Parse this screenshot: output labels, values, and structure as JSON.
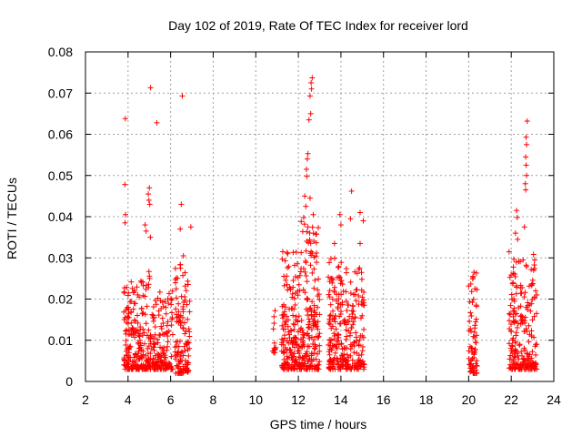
{
  "chart_data": {
    "type": "scatter",
    "title": "Day 102 of 2019, Rate Of TEC Index for receiver lord",
    "xlabel": "GPS time / hours",
    "ylabel": "ROTI / TECUs",
    "xlim": [
      2,
      24
    ],
    "ylim": [
      0,
      0.08
    ],
    "x_ticks": [
      2,
      4,
      6,
      8,
      10,
      12,
      14,
      16,
      18,
      20,
      22,
      24
    ],
    "x_tick_labels": [
      "2",
      "4",
      "6",
      "8",
      "10",
      "12",
      "14",
      "16",
      "18",
      "20",
      "22",
      "24"
    ],
    "y_ticks": [
      0,
      0.01,
      0.02,
      0.03,
      0.04,
      0.05,
      0.06,
      0.07,
      0.08
    ],
    "y_tick_labels": [
      "0",
      "0.01",
      "0.02",
      "0.03",
      "0.04",
      "0.05",
      "0.06",
      "0.07",
      "0.08"
    ],
    "grid": true,
    "marker": "+",
    "series_color": "#ff0000",
    "clusters": [
      {
        "x_start": 3.8,
        "x_end": 4.4,
        "y_min": 0.003,
        "y_max": 0.024,
        "count": 110
      },
      {
        "x_start": 4.4,
        "x_end": 5.2,
        "y_min": 0.003,
        "y_max": 0.026,
        "count": 130
      },
      {
        "x_start": 5.2,
        "x_end": 6.1,
        "y_min": 0.003,
        "y_max": 0.022,
        "count": 130
      },
      {
        "x_start": 6.2,
        "x_end": 6.9,
        "y_min": 0.002,
        "y_max": 0.028,
        "count": 120
      },
      {
        "x_start": 10.8,
        "x_end": 11.0,
        "y_min": 0.007,
        "y_max": 0.024,
        "count": 12
      },
      {
        "x_start": 11.2,
        "x_end": 12.0,
        "y_min": 0.003,
        "y_max": 0.032,
        "count": 150
      },
      {
        "x_start": 12.0,
        "x_end": 13.0,
        "y_min": 0.003,
        "y_max": 0.038,
        "count": 200
      },
      {
        "x_start": 13.4,
        "x_end": 14.2,
        "y_min": 0.003,
        "y_max": 0.03,
        "count": 150
      },
      {
        "x_start": 14.2,
        "x_end": 15.1,
        "y_min": 0.003,
        "y_max": 0.028,
        "count": 130
      },
      {
        "x_start": 20.0,
        "x_end": 20.4,
        "y_min": 0.002,
        "y_max": 0.026,
        "count": 70
      },
      {
        "x_start": 21.9,
        "x_end": 23.2,
        "y_min": 0.003,
        "y_max": 0.03,
        "count": 220
      }
    ],
    "highlight_points": [
      {
        "x": 3.87,
        "y": 0.0638
      },
      {
        "x": 3.85,
        "y": 0.0478
      },
      {
        "x": 3.88,
        "y": 0.0405
      },
      {
        "x": 3.86,
        "y": 0.0385
      },
      {
        "x": 5.06,
        "y": 0.0713
      },
      {
        "x": 5.35,
        "y": 0.0628
      },
      {
        "x": 6.55,
        "y": 0.0693
      },
      {
        "x": 5.0,
        "y": 0.047
      },
      {
        "x": 4.95,
        "y": 0.0455
      },
      {
        "x": 5.02,
        "y": 0.043
      },
      {
        "x": 4.98,
        "y": 0.044
      },
      {
        "x": 4.8,
        "y": 0.038
      },
      {
        "x": 4.85,
        "y": 0.0365
      },
      {
        "x": 5.05,
        "y": 0.035
      },
      {
        "x": 6.5,
        "y": 0.043
      },
      {
        "x": 6.45,
        "y": 0.037
      },
      {
        "x": 6.95,
        "y": 0.0375
      },
      {
        "x": 6.6,
        "y": 0.0305
      },
      {
        "x": 12.65,
        "y": 0.0737
      },
      {
        "x": 12.6,
        "y": 0.0725
      },
      {
        "x": 12.62,
        "y": 0.071
      },
      {
        "x": 12.55,
        "y": 0.0693
      },
      {
        "x": 12.58,
        "y": 0.065
      },
      {
        "x": 12.5,
        "y": 0.0635
      },
      {
        "x": 12.45,
        "y": 0.0553
      },
      {
        "x": 12.42,
        "y": 0.054
      },
      {
        "x": 12.38,
        "y": 0.0515
      },
      {
        "x": 12.4,
        "y": 0.0498
      },
      {
        "x": 12.3,
        "y": 0.045
      },
      {
        "x": 12.55,
        "y": 0.0445
      },
      {
        "x": 12.35,
        "y": 0.0425
      },
      {
        "x": 12.25,
        "y": 0.0398
      },
      {
        "x": 12.7,
        "y": 0.0405
      },
      {
        "x": 12.45,
        "y": 0.0375
      },
      {
        "x": 14.5,
        "y": 0.0462
      },
      {
        "x": 14.9,
        "y": 0.041
      },
      {
        "x": 13.95,
        "y": 0.0405
      },
      {
        "x": 14.0,
        "y": 0.038
      },
      {
        "x": 14.45,
        "y": 0.0395
      },
      {
        "x": 15.05,
        "y": 0.039
      },
      {
        "x": 14.9,
        "y": 0.0335
      },
      {
        "x": 11.5,
        "y": 0.031
      },
      {
        "x": 13.7,
        "y": 0.0335
      },
      {
        "x": 20.25,
        "y": 0.0265
      },
      {
        "x": 20.2,
        "y": 0.0255
      },
      {
        "x": 22.75,
        "y": 0.0632
      },
      {
        "x": 22.7,
        "y": 0.0593
      },
      {
        "x": 22.72,
        "y": 0.0575
      },
      {
        "x": 22.68,
        "y": 0.0545
      },
      {
        "x": 22.7,
        "y": 0.0525
      },
      {
        "x": 22.72,
        "y": 0.05
      },
      {
        "x": 22.66,
        "y": 0.048
      },
      {
        "x": 22.68,
        "y": 0.0465
      },
      {
        "x": 22.25,
        "y": 0.0415
      },
      {
        "x": 22.28,
        "y": 0.0398
      },
      {
        "x": 22.2,
        "y": 0.036
      },
      {
        "x": 22.62,
        "y": 0.0375
      },
      {
        "x": 22.3,
        "y": 0.0345
      },
      {
        "x": 21.9,
        "y": 0.0315
      },
      {
        "x": 23.2,
        "y": 0.021
      },
      {
        "x": 23.05,
        "y": 0.027
      },
      {
        "x": 23.1,
        "y": 0.0295
      }
    ]
  }
}
